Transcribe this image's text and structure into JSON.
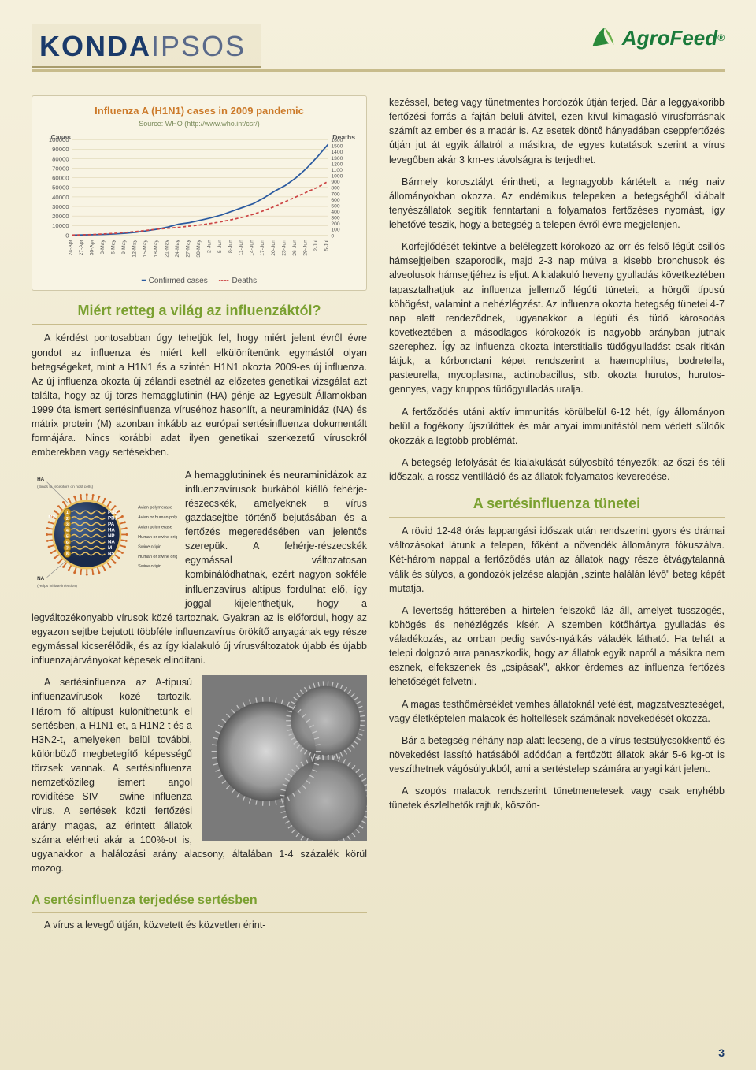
{
  "header": {
    "title_bold": "KONDA",
    "title_light": "IPSOS",
    "logo_text_a": "Agro",
    "logo_text_b": "Feed",
    "logo_reg": "®"
  },
  "chart": {
    "type": "line",
    "title": "Influenza A (H1N1) cases in 2009 pandemic",
    "source": "Source: WHO  (http://www.who.int/csr/)",
    "y1_label": "Cases",
    "y2_label": "Deaths",
    "y1_ticks": [
      0,
      10000,
      20000,
      30000,
      40000,
      50000,
      60000,
      70000,
      80000,
      90000,
      100000
    ],
    "y2_ticks": [
      0,
      100,
      200,
      300,
      400,
      500,
      600,
      700,
      800,
      900,
      1000,
      1100,
      1200,
      1300,
      1400,
      1500,
      1600
    ],
    "x_ticks": [
      "24-Apr",
      "27-Apr",
      "30-Apr",
      "3-May",
      "6-May",
      "9-May",
      "12-May",
      "15-May",
      "18-May",
      "21-May",
      "24-May",
      "27-May",
      "30-May",
      "2-Jun",
      "5-Jun",
      "8-Jun",
      "11-Jun",
      "14-Jun",
      "17-Jun",
      "20-Jun",
      "23-Jun",
      "26-Jun",
      "29-Jun",
      "2-Jul",
      "5-Jul"
    ],
    "series": {
      "confirmed": {
        "label": "Confirmed cases",
        "color": "#2a5aa0",
        "values": [
          50,
          200,
          400,
          700,
          1200,
          2000,
          3000,
          4500,
          6200,
          8500,
          11500,
          13000,
          15500,
          18000,
          21000,
          25000,
          29000,
          33000,
          39000,
          46000,
          52000,
          60000,
          70000,
          82000,
          95000
        ]
      },
      "deaths": {
        "label": "Deaths",
        "color": "#cc4444",
        "dash": "4 3",
        "values": [
          0,
          5,
          10,
          20,
          30,
          45,
          60,
          80,
          100,
          115,
          130,
          150,
          170,
          195,
          225,
          260,
          300,
          350,
          410,
          480,
          560,
          640,
          720,
          800,
          900
        ]
      }
    },
    "ylim1": [
      0,
      100000
    ],
    "ylim2": [
      0,
      1600
    ],
    "grid_color": "#d8cda8",
    "background_color": "#f8f4e4",
    "title_color": "#cc7a2a",
    "axis_font_size": 8
  },
  "left": {
    "h1": "Miért retteg a világ az influenzáktól?",
    "p1": "A kérdést pontosabban úgy tehetjük fel, hogy miért jelent évről évre gondot az influenza és miért kell elkülönítenünk egymástól olyan betegségeket, mint a H1N1 és a szintén H1N1 okozta 2009-es új influenza. Az új influenza okozta új zélandi esetnél az előzetes genetikai vizsgálat azt találta, hogy az új törzs hemagglutinin (HA) génje az Egyesült Államokban 1999 óta ismert sertésinfluenza víruséhoz hasonlít, a neuraminidáz (NA) és mátrix protein (M) azonban inkább az európai sertésinfluenza dokumentált formájára. Nincs korábbi adat ilyen genetikai szerkezetű vírusokról emberekben vagy sertésekben.",
    "p2": "A hemagglutininek és neuraminidázok az influenzavírusok burkából kiálló fehérje-részecskék, amelyeknek a vírus gazdasejtbe történő bejutásában és a fertőzés megeredésében van jelentős szerepük. A fehérje-részecskék egymással változatosan kombinálódhatnak, ezért nagyon sokféle influenzavírus altípus fordulhat elő, így joggal kijelenthetjük, hogy a legváltozékonyabb vírusok közé tartoznak. Gyakran az is előfordul, hogy az egyazon sejtbe bejutott többféle influenzavírus örökítő anyagának egy része egymással kicserélődik, és az így kialakuló új vírusváltozatok újabb és újabb influenzajárványokat képesek elindítani.",
    "p3": "A sertésinfluenza az A-típusú influenzavírusok közé tartozik. Három fő altípust különíthetünk el sertésben, a H1N1-et, a H1N2-t és a H3N2-t, amelyeken belül további, különböző megbetegítő képességű törzsek vannak. A sertésinfluenza nemzetközileg ismert angol rövidítése SIV – swine influenza virus. A sertések közti fertőzési arány magas, az érintett állatok száma elérheti akár a 100%-ot is, ugyanakkor a halálozási arány alacsony, általában 1-4 százalék körül mozog.",
    "h2": "A sertésinfluenza terjedése sertésben",
    "p4": "A vírus a levegő útján, közvetett és közvetlen érint-",
    "diagram_labels": {
      "ha": "HA",
      "na": "NA",
      "m2": "M2",
      "binds": "(Binds to receptors on host cells)",
      "helps": "(Helps initiate infection)",
      "pb2": "PB2",
      "pb1": "PB1",
      "pa": "PA",
      "ha2": "HA",
      "np": "NP",
      "na2": "NA",
      "m": "M",
      "ns": "NS",
      "avian": "Avian polymerase",
      "avh": "Avian or human polymerase",
      "av2": "Avian polymerase",
      "hsw": "Human or swine origin",
      "sw": "Swine origin",
      "hsw2": "Human or swine origin",
      "sw2": "Swine origin"
    }
  },
  "right": {
    "p1": "kezéssel, beteg vagy tünetmentes hordozók útján terjed. Bár a leggyakoribb fertőzési forrás a fajtán belüli átvitel, ezen kívül kimagasló vírusforrásnak számít az ember és a madár is. Az esetek döntő hányadában cseppfertőzés útján jut át egyik állatról a másikra, de egyes kutatások szerint a vírus levegőben akár 3 km-es távolságra is terjedhet.",
    "p2": "Bármely korosztályt érintheti, a legnagyobb kártételt a még naiv állományokban okozza. Az endémikus telepeken a betegségből kilábalt tenyészállatok segítik fenntartani a folyamatos fertőzéses nyomást, így lehetővé teszik, hogy a betegség a telepen évről évre megjelenjen.",
    "p3": "Körfejlődését tekintve a belélegzett kórokozó az orr és felső légút csillós hámsejtjeiben szaporodik, majd 2-3 nap múlva a kisebb bronchusok és alveolusok hámsejtjéhez is eljut. A kialakuló heveny gyulladás következtében tapasztalhatjuk az influenza jellemző légúti tüneteit, a hörgői típusú köhögést, valamint a nehézlégzést. Az influenza okozta betegség tünetei 4-7 nap alatt rendeződnek, ugyanakkor a légúti és tüdő károsodás következtében a másodlagos kórokozók is nagyobb arányban jutnak szerephez. Így az influenza okozta interstitialis tüdőgyulladást csak ritkán látjuk, a kórbonctani képet rendszerint a haemophilus, bodretella, pasteurella, mycoplasma, actinobacillus, stb. okozta hurutos, hurutos-gennyes, vagy kruppos tüdőgyulladás uralja.",
    "p4": "A fertőződés utáni aktív immunitás körülbelül 6-12 hét, így állományon belül a fogékony újszülöttek és már anyai immunitástól nem védett süldők okozzák a legtöbb problémát.",
    "p5": "A betegség lefolyását és kialakulását súlyosbító tényezők: az őszi és téli időszak, a rossz ventilláció és az állatok folyamatos keveredése.",
    "h1": "A sertésinfluenza tünetei",
    "p6": "A rövid 12-48 órás lappangási időszak után rendszerint gyors és drámai változásokat látunk a telepen, főként a növendék állományra fókuszálva. Két-három nappal a fertőződés után az állatok nagy része étvágytalanná válik és súlyos, a gondozók jelzése alapján „szinte halálán lévő\" beteg képét mutatja.",
    "p7": "A levertség hátterében a hirtelen felszökő láz áll, amelyet tüsszögés, köhögés és nehézlégzés kísér. A szemben kötőhártya gyulladás és váladékozás, az orrban pedig savós-nyálkás váladék látható. Ha tehát a telepi dolgozó arra panaszkodik, hogy az állatok egyik napról a másikra nem esznek, elfekszenek és „csipásak\", akkor érdemes az influenza fertőzés lehetőségét felvetni.",
    "p8": "A magas testhőmérséklet vemhes állatoknál vetélést, magzatveszteséget, vagy életképtelen malacok és holtellések számának növekedését okozza.",
    "p9": "Bár a betegség néhány nap alatt lecseng, de a vírus testsúlycsökkentő és növekedést lassító hatásából adódóan a fertőzött állatok akár 5-6 kg-ot is veszíthetnek vágósúlyukból, ami a sertéstelep számára anyagi kárt jelent.",
    "p10": "A szopós malacok rendszerint tünetmenetesek vagy csak enyhébb tünetek észlelhetők rajtuk, köszön-"
  },
  "pagenum": "3"
}
